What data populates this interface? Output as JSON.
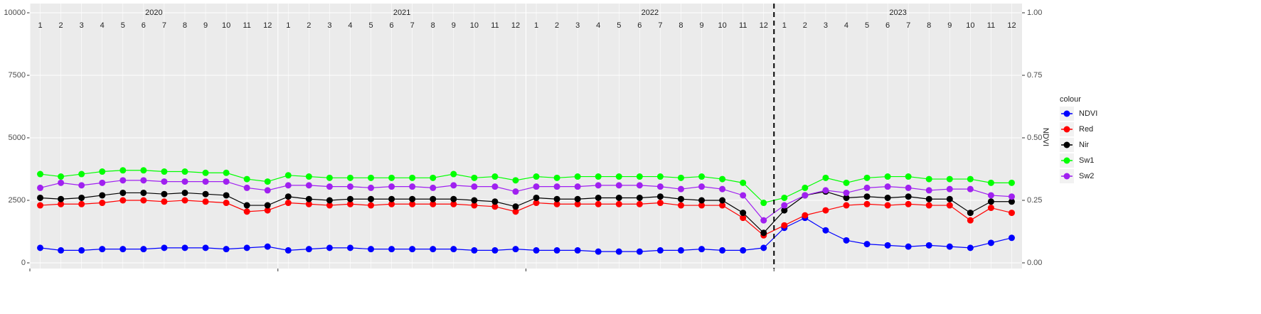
{
  "chart_data": {
    "type": "line",
    "years": [
      "2020",
      "2021",
      "2022",
      "2023"
    ],
    "months": [
      "1",
      "2",
      "3",
      "4",
      "5",
      "6",
      "7",
      "8",
      "9",
      "10",
      "11",
      "12"
    ],
    "x": [
      "2020-01",
      "2020-02",
      "2020-03",
      "2020-04",
      "2020-05",
      "2020-06",
      "2020-07",
      "2020-08",
      "2020-09",
      "2020-10",
      "2020-11",
      "2020-12",
      "2021-01",
      "2021-02",
      "2021-03",
      "2021-04",
      "2021-05",
      "2021-06",
      "2021-07",
      "2021-08",
      "2021-09",
      "2021-10",
      "2021-11",
      "2021-12",
      "2022-01",
      "2022-02",
      "2022-03",
      "2022-04",
      "2022-05",
      "2022-06",
      "2022-07",
      "2022-08",
      "2022-09",
      "2022-10",
      "2022-11",
      "2022-12",
      "2023-01",
      "2023-02",
      "2023-03",
      "2023-04",
      "2023-05",
      "2023-06",
      "2023-07",
      "2023-08",
      "2023-09",
      "2023-10",
      "2023-11",
      "2023-12"
    ],
    "series": [
      {
        "name": "NDVI",
        "color": "#0000ff",
        "axis": "y2",
        "values": [
          0.06,
          0.05,
          0.05,
          0.055,
          0.055,
          0.055,
          0.06,
          0.06,
          0.06,
          0.055,
          0.06,
          0.065,
          0.05,
          0.055,
          0.06,
          0.06,
          0.055,
          0.055,
          0.055,
          0.055,
          0.055,
          0.05,
          0.05,
          0.055,
          0.05,
          0.05,
          0.05,
          0.045,
          0.045,
          0.045,
          0.05,
          0.05,
          0.055,
          0.05,
          0.05,
          0.06,
          0.14,
          0.18,
          0.13,
          0.09,
          0.075,
          0.07,
          0.065,
          0.07,
          0.065,
          0.06,
          0.08,
          0.1
        ]
      },
      {
        "name": "Red",
        "color": "#ff0000",
        "values": [
          2300,
          2350,
          2350,
          2400,
          2500,
          2500,
          2450,
          2500,
          2450,
          2400,
          2050,
          2100,
          2400,
          2350,
          2300,
          2350,
          2300,
          2350,
          2350,
          2350,
          2350,
          2300,
          2250,
          2050,
          2400,
          2350,
          2350,
          2350,
          2350,
          2350,
          2400,
          2300,
          2300,
          2300,
          1800,
          1100,
          1500,
          1900,
          2100,
          2300,
          2350,
          2300,
          2350,
          2300,
          2300,
          1700,
          2200,
          2000
        ]
      },
      {
        "name": "Nir",
        "color": "#000000",
        "values": [
          2600,
          2550,
          2600,
          2700,
          2800,
          2800,
          2750,
          2800,
          2750,
          2700,
          2300,
          2300,
          2650,
          2550,
          2500,
          2550,
          2550,
          2550,
          2550,
          2550,
          2550,
          2500,
          2450,
          2250,
          2600,
          2550,
          2550,
          2600,
          2600,
          2600,
          2650,
          2550,
          2500,
          2500,
          2000,
          1200,
          2100,
          2700,
          2850,
          2600,
          2650,
          2600,
          2650,
          2550,
          2550,
          2000,
          2450,
          2450
        ]
      },
      {
        "name": "Sw1",
        "color": "#00ff00",
        "values": [
          3550,
          3450,
          3550,
          3650,
          3700,
          3700,
          3650,
          3650,
          3600,
          3600,
          3350,
          3250,
          3500,
          3450,
          3400,
          3400,
          3400,
          3400,
          3400,
          3400,
          3550,
          3400,
          3450,
          3300,
          3450,
          3400,
          3450,
          3450,
          3450,
          3450,
          3450,
          3400,
          3450,
          3350,
          3200,
          2400,
          2600,
          3000,
          3400,
          3200,
          3400,
          3450,
          3450,
          3350,
          3350,
          3350,
          3200,
          3200
        ]
      },
      {
        "name": "Sw2",
        "color": "#a020f0",
        "values": [
          3000,
          3200,
          3100,
          3200,
          3300,
          3300,
          3250,
          3250,
          3250,
          3250,
          3000,
          2900,
          3100,
          3100,
          3050,
          3050,
          3000,
          3050,
          3050,
          3000,
          3100,
          3050,
          3050,
          2850,
          3050,
          3050,
          3050,
          3100,
          3100,
          3100,
          3050,
          2950,
          3050,
          2950,
          2700,
          1700,
          2300,
          2700,
          2900,
          2800,
          3000,
          3050,
          3000,
          2900,
          2950,
          2950,
          2700,
          2650
        ]
      }
    ],
    "ylim": [
      0,
      10000
    ],
    "yticks": [
      0,
      2500,
      5000,
      7500,
      10000
    ],
    "y2lim": [
      0,
      1
    ],
    "y2ticks": [
      {
        "value": 0,
        "label": "0.00"
      },
      {
        "value": 0.25,
        "label": "0.25"
      },
      {
        "value": 0.5,
        "label": "0.50"
      },
      {
        "value": 0.75,
        "label": "0.75"
      },
      {
        "value": 1,
        "label": "1.00"
      }
    ],
    "y2_label": "NDVI",
    "legend_title": "colour",
    "reference_line": {
      "x": "2023-01",
      "style": "dashed"
    },
    "grid": true
  }
}
